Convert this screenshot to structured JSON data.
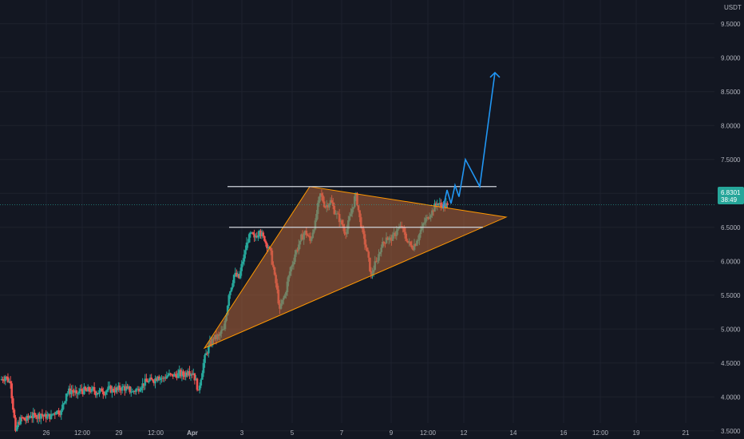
{
  "chart_data": {
    "type": "candlestick",
    "currency": "USDT",
    "y_ticks": [
      "9.5000",
      "9.0000",
      "8.5000",
      "8.0000",
      "7.5000",
      "7.0000",
      "6.5000",
      "6.0000",
      "5.5000",
      "5.0000",
      "4.5000",
      "4.0000",
      "3.5000"
    ],
    "y_tick_values": [
      9.5,
      9.0,
      8.5,
      8.0,
      7.5,
      7.0,
      6.5,
      6.0,
      5.5,
      5.0,
      4.5,
      4.0,
      3.5
    ],
    "ylim": [
      3.38,
      9.85
    ],
    "x_ticks": [
      {
        "label": "26",
        "bold": false
      },
      {
        "label": "12:00",
        "bold": false
      },
      {
        "label": "29",
        "bold": false
      },
      {
        "label": "12:00",
        "bold": false
      },
      {
        "label": "Apr",
        "bold": true
      },
      {
        "label": "3",
        "bold": false
      },
      {
        "label": "5",
        "bold": false
      },
      {
        "label": "7",
        "bold": false
      },
      {
        "label": "9",
        "bold": false
      },
      {
        "label": "12:00",
        "bold": false
      },
      {
        "label": "12",
        "bold": false
      },
      {
        "label": "14",
        "bold": false
      },
      {
        "label": "16",
        "bold": false
      },
      {
        "label": "12:00",
        "bold": false
      },
      {
        "label": "19",
        "bold": false
      },
      {
        "label": "21",
        "bold": false
      }
    ],
    "current_price": {
      "value": "6.8301",
      "countdown": "38:49",
      "price": 6.83
    },
    "price_path": [
      [
        4.25,
        4.3
      ],
      [
        4.3,
        4.2
      ],
      [
        4.2,
        3.5
      ],
      [
        3.5,
        3.7
      ],
      [
        3.7,
        3.65
      ],
      [
        3.65,
        3.72
      ],
      [
        3.72,
        3.7
      ],
      [
        3.7,
        3.75
      ],
      [
        3.75,
        3.68
      ],
      [
        3.68,
        3.74
      ],
      [
        3.74,
        3.78
      ],
      [
        3.78,
        3.8
      ],
      [
        3.8,
        4.05
      ],
      [
        4.05,
        4.1
      ],
      [
        4.1,
        4.05
      ],
      [
        4.05,
        4.1
      ],
      [
        4.1,
        4.08
      ],
      [
        4.08,
        4.12
      ],
      [
        4.12,
        4.06
      ],
      [
        4.06,
        4.08
      ],
      [
        4.08,
        4.1
      ],
      [
        4.1,
        4.12
      ],
      [
        4.12,
        4.1
      ],
      [
        4.1,
        4.15
      ],
      [
        4.15,
        4.12
      ],
      [
        4.12,
        4.08
      ],
      [
        4.08,
        4.12
      ],
      [
        4.12,
        4.2
      ],
      [
        4.2,
        4.22
      ],
      [
        4.22,
        4.24
      ],
      [
        4.24,
        4.3
      ],
      [
        4.3,
        4.28
      ],
      [
        4.28,
        4.32
      ],
      [
        4.32,
        4.3
      ],
      [
        4.3,
        4.35
      ],
      [
        4.35,
        4.32
      ],
      [
        4.32,
        4.38
      ],
      [
        4.38,
        4.35
      ],
      [
        4.35,
        4.1
      ],
      [
        4.1,
        4.5
      ],
      [
        4.5,
        4.75
      ],
      [
        4.75,
        4.85
      ],
      [
        4.85,
        4.9
      ],
      [
        4.9,
        5.0
      ],
      [
        5.0,
        5.5
      ],
      [
        5.5,
        5.8
      ],
      [
        5.8,
        5.75
      ],
      [
        5.75,
        6.1
      ],
      [
        6.1,
        6.4
      ],
      [
        6.4,
        6.35
      ],
      [
        6.35,
        6.45
      ],
      [
        6.45,
        6.3
      ],
      [
        6.3,
        6.2
      ],
      [
        6.2,
        5.8
      ],
      [
        5.8,
        5.3
      ],
      [
        5.3,
        5.5
      ],
      [
        5.5,
        5.85
      ],
      [
        5.85,
        6.1
      ],
      [
        6.1,
        6.3
      ],
      [
        6.3,
        6.45
      ],
      [
        6.45,
        6.3
      ],
      [
        6.3,
        6.6
      ],
      [
        6.6,
        7.0
      ],
      [
        7.0,
        6.8
      ],
      [
        6.8,
        6.9
      ],
      [
        6.9,
        6.7
      ],
      [
        6.7,
        6.6
      ],
      [
        6.6,
        6.4
      ],
      [
        6.4,
        6.7
      ],
      [
        6.7,
        7.0
      ],
      [
        7.0,
        6.5
      ],
      [
        6.5,
        6.2
      ],
      [
        6.2,
        5.8
      ],
      [
        5.8,
        6.0
      ],
      [
        6.0,
        6.2
      ],
      [
        6.2,
        6.35
      ],
      [
        6.35,
        6.3
      ],
      [
        6.3,
        6.45
      ],
      [
        6.45,
        6.5
      ],
      [
        6.5,
        6.3
      ],
      [
        6.3,
        6.2
      ],
      [
        6.2,
        6.3
      ],
      [
        6.3,
        6.5
      ],
      [
        6.5,
        6.65
      ],
      [
        6.65,
        6.75
      ],
      [
        6.75,
        6.85
      ],
      [
        6.85,
        6.8
      ],
      [
        6.8,
        6.83
      ]
    ],
    "annotations": {
      "triangle": [
        [
          "Apr",
          4.72
        ],
        [
          "5",
          7.1
        ],
        [
          "12",
          6.65
        ]
      ],
      "resistance_line": 7.1,
      "support_line": 6.5,
      "projection": [
        6.78,
        7.05,
        6.85,
        7.12,
        6.95,
        7.5,
        7.1,
        8.78
      ]
    }
  },
  "colors": {
    "background": "#131722",
    "grid": "#1e222d",
    "up": "#26a69a",
    "down": "#ef5350",
    "triangle_fill": "#b3653a",
    "triangle_stroke": "#ff9800",
    "hline": "#d1d4dc",
    "projection": "#2196f3",
    "price_tag": "#26a69a",
    "text": "#b2b5be"
  }
}
